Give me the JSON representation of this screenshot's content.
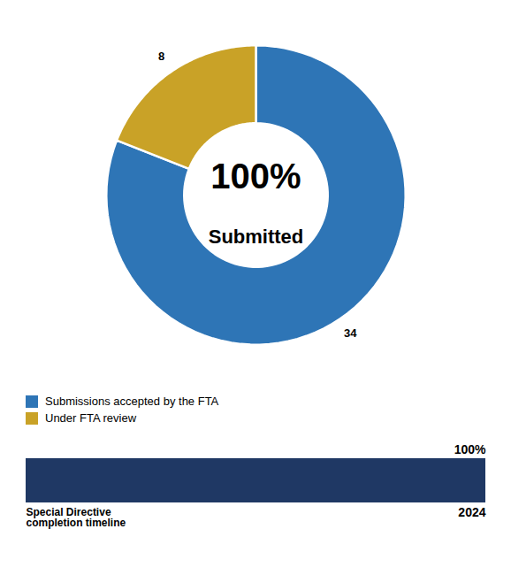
{
  "chart_data": [
    {
      "type": "pie",
      "categories": [
        "Submissions accepted by the FTA",
        "Under FTA review"
      ],
      "values": [
        34,
        8
      ],
      "colors": [
        "#2E75B6",
        "#C9A227"
      ],
      "data_labels": true,
      "legend": "upper left",
      "annotations": [
        "100%",
        "Submitted"
      ]
    },
    {
      "type": "bar",
      "orientation": "horizontal",
      "categories": [
        null
      ],
      "values": [
        100
      ],
      "value_labels": [
        "100%"
      ],
      "data_labels": true,
      "color": "#1F3864",
      "xlim": [
        0,
        100
      ],
      "tick_labels": false,
      "annotations": [
        "Special Directive\ncompletion timeline",
        "2024"
      ]
    }
  ]
}
